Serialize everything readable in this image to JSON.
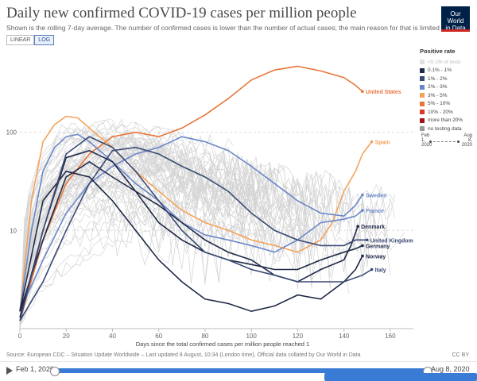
{
  "header": {
    "title": "Daily new confirmed COVID-19 cases per million people",
    "subtitle": "Shown is the rolling 7-day average. The number of confirmed cases is lower than the number of actual cases; the main reason for that is limited testing.",
    "logo_line1": "Our World",
    "logo_line2": "in Data"
  },
  "controls": {
    "linear_label": "LINEAR",
    "log_label": "LOG",
    "active": "LOG"
  },
  "legend": {
    "title": "Positive rate",
    "items": [
      {
        "label": "<0.1% of tests",
        "color": "#e0e0e0"
      },
      {
        "label": "0.1% - 1%",
        "color": "#1f2a48"
      },
      {
        "label": "1% - 2%",
        "color": "#3b4a75"
      },
      {
        "label": "2% - 3%",
        "color": "#6a87c8"
      },
      {
        "label": "3% - 5%",
        "color": "#f4a35b"
      },
      {
        "label": "5% - 10%",
        "color": "#e8763a"
      },
      {
        "label": "10% - 20%",
        "color": "#d93a2c"
      },
      {
        "label": "more than 20%",
        "color": "#a3121c"
      },
      {
        "label": "no testing data",
        "color": "#9a9a9a"
      }
    ],
    "timeline_start": "Feb 1, 2020",
    "timeline_end": "Aug 8, 2020"
  },
  "footer": {
    "source": "Source: European CDC – Situation Update Worldwide – Last updated 8 August, 10:34 (London time), Official data collated by Our World in Data",
    "license": "CC BY"
  },
  "playbar": {
    "start": "Feb 1, 2020",
    "end": "Aug 8, 2020"
  },
  "chart_data": {
    "type": "line",
    "title": "Daily new confirmed COVID-19 cases per million people",
    "xlabel": "Days since the total confirmed cases per million people reached 1",
    "ylabel": "",
    "xlim": [
      0,
      170
    ],
    "ylim": [
      1,
      700
    ],
    "yscale": "log",
    "x_ticks": [
      0,
      20,
      40,
      60,
      80,
      100,
      120,
      140,
      160
    ],
    "y_ticks": [
      10,
      100
    ],
    "grid": true,
    "series": [
      {
        "name": "United States",
        "color": "#e8763a",
        "x": [
          0,
          10,
          20,
          30,
          40,
          50,
          60,
          70,
          80,
          90,
          100,
          110,
          120,
          130,
          140,
          145,
          148
        ],
        "y": [
          1.2,
          8,
          30,
          60,
          90,
          100,
          90,
          110,
          150,
          220,
          340,
          430,
          470,
          420,
          360,
          300,
          260
        ]
      },
      {
        "name": "Spain",
        "color": "#f4a35b",
        "x": [
          0,
          5,
          10,
          15,
          20,
          25,
          30,
          40,
          50,
          60,
          70,
          80,
          90,
          100,
          110,
          120,
          130,
          135,
          140,
          145,
          148,
          152
        ],
        "y": [
          1.5,
          20,
          80,
          120,
          145,
          140,
          110,
          70,
          40,
          25,
          16,
          12,
          10,
          8,
          7,
          6,
          8,
          12,
          25,
          40,
          60,
          80
        ]
      },
      {
        "name": "Sweden",
        "color": "#6a87c8",
        "x": [
          0,
          10,
          20,
          30,
          40,
          50,
          60,
          70,
          80,
          90,
          100,
          110,
          120,
          130,
          140,
          145,
          148
        ],
        "y": [
          1.5,
          5,
          15,
          30,
          45,
          60,
          70,
          90,
          80,
          65,
          45,
          30,
          20,
          15,
          14,
          18,
          23
        ]
      },
      {
        "name": "France",
        "color": "#6a87c8",
        "x": [
          0,
          5,
          10,
          15,
          20,
          25,
          30,
          40,
          50,
          60,
          70,
          80,
          90,
          100,
          110,
          120,
          130,
          140,
          145,
          148
        ],
        "y": [
          1.5,
          10,
          40,
          70,
          90,
          95,
          80,
          50,
          30,
          20,
          12,
          9,
          8,
          7,
          6,
          8,
          12,
          13,
          14,
          16
        ]
      },
      {
        "name": "Denmark",
        "color": "#1f2a48",
        "x": [
          0,
          10,
          20,
          30,
          40,
          50,
          60,
          70,
          80,
          90,
          100,
          110,
          120,
          130,
          140,
          143,
          146
        ],
        "y": [
          1.5,
          8,
          35,
          50,
          35,
          25,
          18,
          12,
          8,
          6,
          5,
          3.5,
          3,
          4,
          5,
          7,
          11
        ]
      },
      {
        "name": "United Kingdom",
        "color": "#3b4a75",
        "x": [
          0,
          10,
          20,
          30,
          40,
          50,
          60,
          70,
          80,
          90,
          100,
          110,
          120,
          130,
          140,
          145,
          150
        ],
        "y": [
          1.2,
          3,
          10,
          30,
          65,
          70,
          60,
          45,
          35,
          25,
          15,
          10,
          8,
          7,
          7,
          8,
          8
        ]
      },
      {
        "name": "Germany",
        "color": "#1f2a48",
        "x": [
          0,
          10,
          20,
          30,
          40,
          50,
          60,
          70,
          80,
          90,
          100,
          110,
          120,
          130,
          140,
          145,
          148
        ],
        "y": [
          1.3,
          10,
          55,
          65,
          50,
          25,
          12,
          8,
          6,
          5,
          4.5,
          4,
          4,
          5,
          6,
          6.5,
          7
        ]
      },
      {
        "name": "Norway",
        "color": "#1f2a48",
        "x": [
          0,
          10,
          20,
          30,
          40,
          50,
          60,
          70,
          80,
          90,
          100,
          110,
          120,
          130,
          140,
          145,
          148
        ],
        "y": [
          1.5,
          20,
          40,
          35,
          20,
          10,
          5,
          3,
          2,
          1.8,
          1.5,
          1.7,
          2.2,
          2,
          3,
          4,
          5.5
        ]
      },
      {
        "name": "Italy",
        "color": "#3b4a75",
        "x": [
          0,
          10,
          20,
          30,
          40,
          50,
          60,
          70,
          80,
          90,
          100,
          110,
          120,
          130,
          140,
          148,
          152
        ],
        "y": [
          1.2,
          10,
          60,
          90,
          70,
          40,
          20,
          10,
          6,
          5,
          4,
          3.5,
          3,
          3,
          3,
          3.5,
          4
        ]
      }
    ]
  }
}
